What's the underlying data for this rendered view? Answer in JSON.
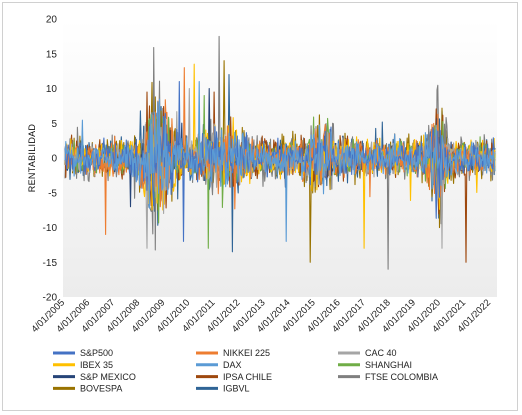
{
  "chart_data": {
    "type": "line",
    "title": "",
    "xlabel": "",
    "ylabel": "RENTABILIDAD",
    "ylim": [
      -20,
      20
    ],
    "yticks": [
      20,
      15,
      10,
      5,
      0,
      -5,
      -10,
      -15,
      -20
    ],
    "x_ticks": [
      "4/01/2005",
      "4/01/2006",
      "4/01/2007",
      "4/01/2008",
      "4/01/2009",
      "4/01/2010",
      "4/01/2011",
      "4/01/2012",
      "4/01/2013",
      "4/01/2014",
      "4/01/2015",
      "4/01/2016",
      "4/01/2017",
      "4/01/2018",
      "4/01/2019",
      "4/01/2020",
      "4/01/2021",
      "4/01/2022"
    ],
    "x_range": [
      "2005-01-04",
      "2022-07-01"
    ],
    "legend_position": "bottom",
    "grid": false,
    "series": [
      {
        "name": "S&P500",
        "color": "#4472C4",
        "approx_min": -12,
        "approx_max": 11
      },
      {
        "name": "NIKKEI 225",
        "color": "#ED7D31",
        "approx_min": -11,
        "approx_max": 13
      },
      {
        "name": "CAC 40",
        "color": "#A5A5A5",
        "approx_min": -13,
        "approx_max": 10
      },
      {
        "name": "IBEX 35",
        "color": "#FFC000",
        "approx_min": -13,
        "approx_max": 13.5
      },
      {
        "name": "DAX",
        "color": "#5B9BD5",
        "approx_min": -12,
        "approx_max": 11
      },
      {
        "name": "SHANGHAI",
        "color": "#70AD47",
        "approx_min": -13,
        "approx_max": 9
      },
      {
        "name": "S&P MEXICO",
        "color": "#264478",
        "approx_min": -7,
        "approx_max": 10
      },
      {
        "name": "IPSA CHILE",
        "color": "#9E480E",
        "approx_min": -15,
        "approx_max": 9.5
      },
      {
        "name": "FTSE COLOMBIA",
        "color": "#7F7F7F",
        "approx_min": -16,
        "approx_max": 17.5
      },
      {
        "name": "BOVESPA",
        "color": "#997300",
        "approx_min": -15,
        "approx_max": 14
      },
      {
        "name": "IGBVL",
        "color": "#2F6496",
        "approx_min": -13.5,
        "approx_max": 12
      }
    ]
  }
}
